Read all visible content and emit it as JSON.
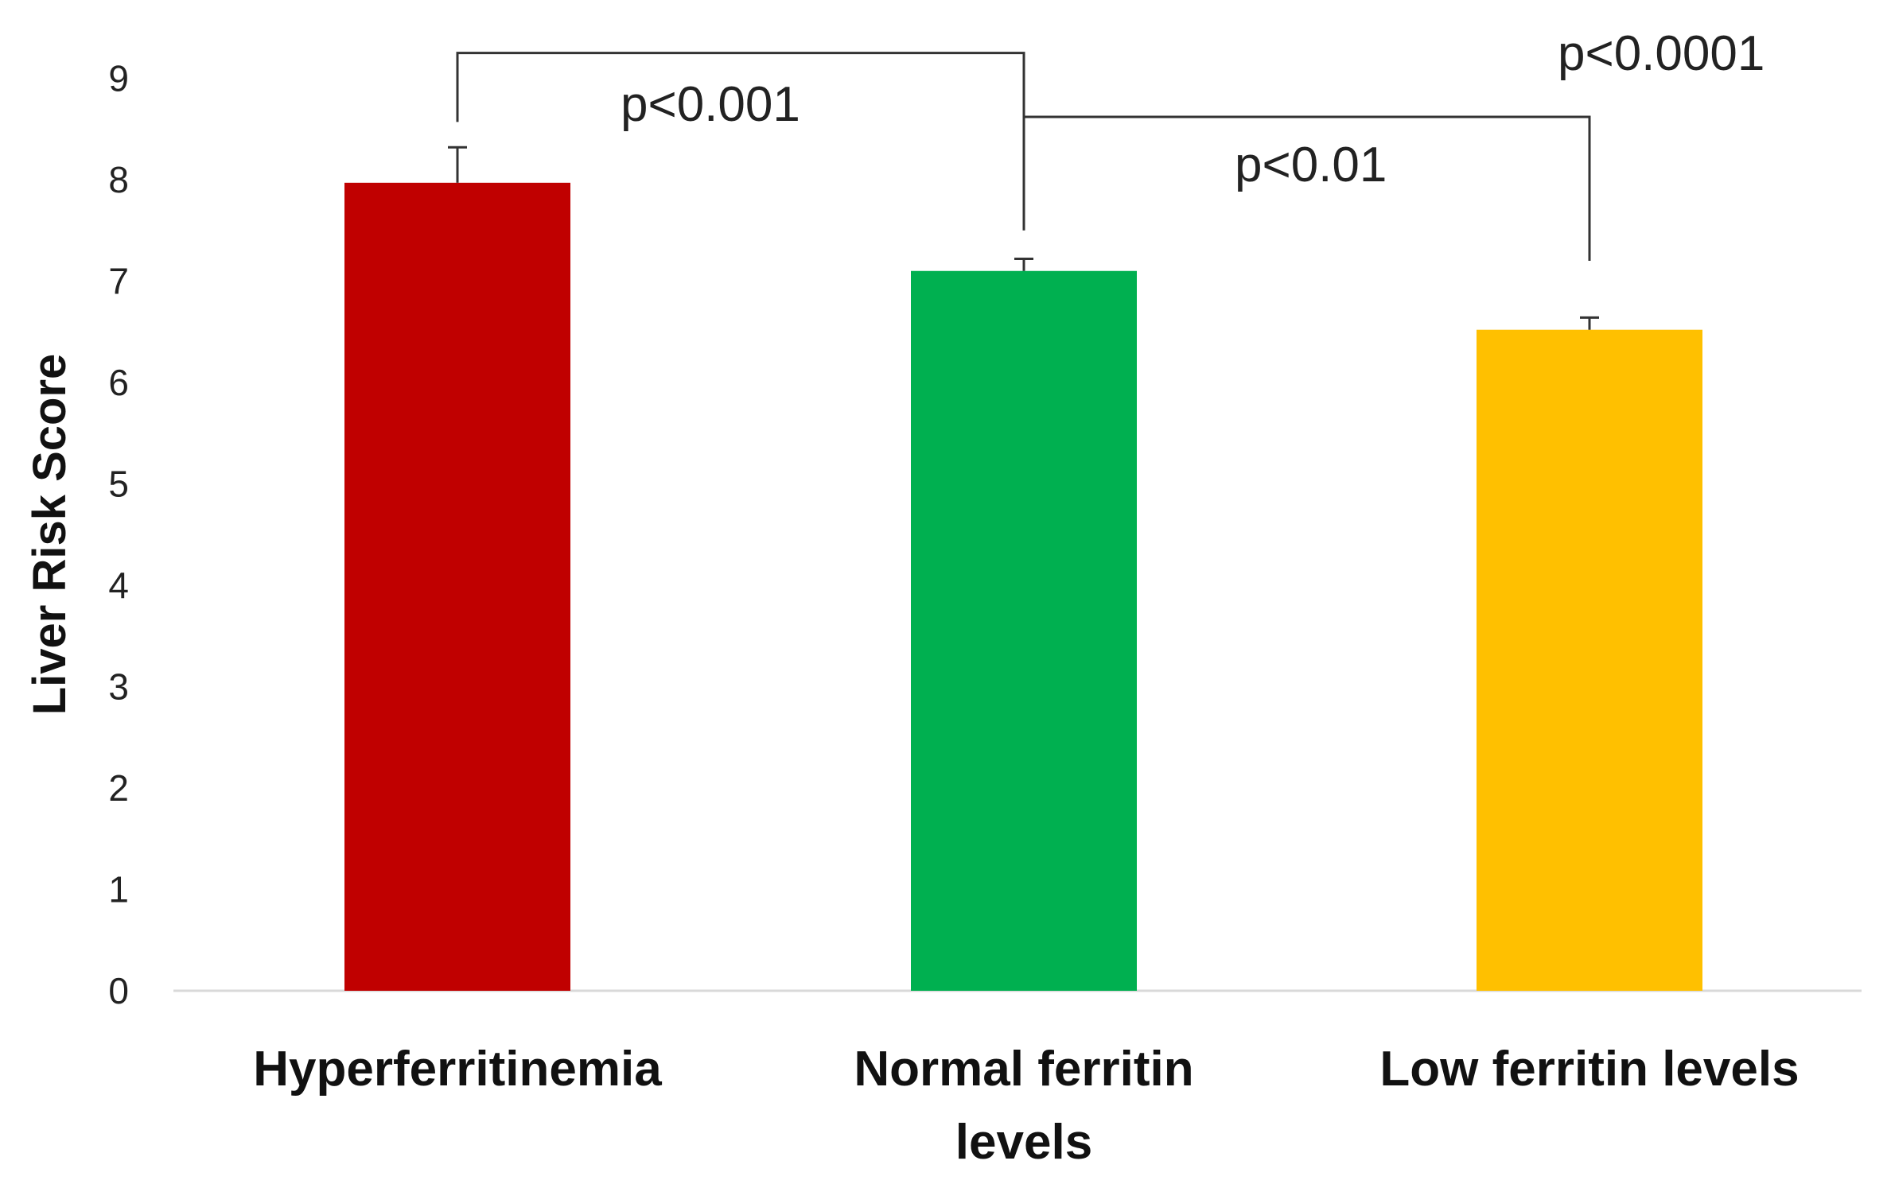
{
  "chart_data": {
    "type": "bar",
    "title": "",
    "xlabel": "",
    "ylabel": "Liver Risk Score",
    "ylim": [
      0,
      9
    ],
    "yticks": [
      0,
      1,
      2,
      3,
      4,
      5,
      6,
      7,
      8,
      9
    ],
    "categories": [
      "Hyperferritinemia",
      "Normal ferritin levels",
      "Low ferritin levels"
    ],
    "category_lines": [
      [
        "Hyperferritinemia"
      ],
      [
        "Normal ferritin",
        "levels"
      ],
      [
        "Low ferritin levels"
      ]
    ],
    "values": [
      7.97,
      7.1,
      6.52
    ],
    "errors": [
      0.35,
      0.12,
      0.12
    ],
    "colors": [
      "#c00000",
      "#00b050",
      "#ffc000"
    ],
    "grid": false,
    "annotations": [
      {
        "label": "p<0.001",
        "from": 0,
        "to": 1,
        "level": 9.25
      },
      {
        "label": "p<0.01",
        "from": 1,
        "to": 2,
        "level": 8.62
      },
      {
        "label": "p<0.0001",
        "from": 1,
        "to": 2,
        "level": 9.25,
        "label_only": true
      }
    ]
  }
}
